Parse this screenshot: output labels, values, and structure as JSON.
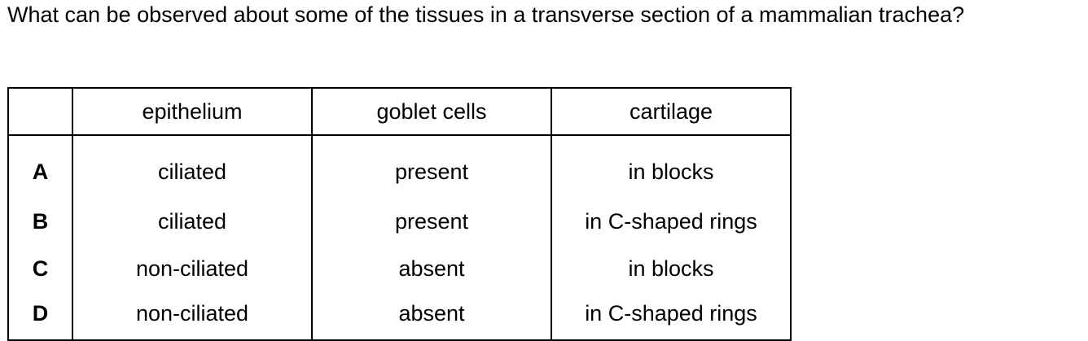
{
  "question": "What can be observed about some of the tissues in a transverse section of a mammalian trachea?",
  "table": {
    "headers": [
      "",
      "epithelium",
      "goblet cells",
      "cartilage"
    ],
    "rows": [
      {
        "label": "A",
        "epithelium": "ciliated",
        "goblet_cells": "present",
        "cartilage": "in blocks"
      },
      {
        "label": "B",
        "epithelium": "ciliated",
        "goblet_cells": "present",
        "cartilage": "in C-shaped rings"
      },
      {
        "label": "C",
        "epithelium": "non-ciliated",
        "goblet_cells": "absent",
        "cartilage": "in blocks"
      },
      {
        "label": "D",
        "epithelium": "non-ciliated",
        "goblet_cells": "absent",
        "cartilage": "in C-shaped rings"
      }
    ]
  }
}
